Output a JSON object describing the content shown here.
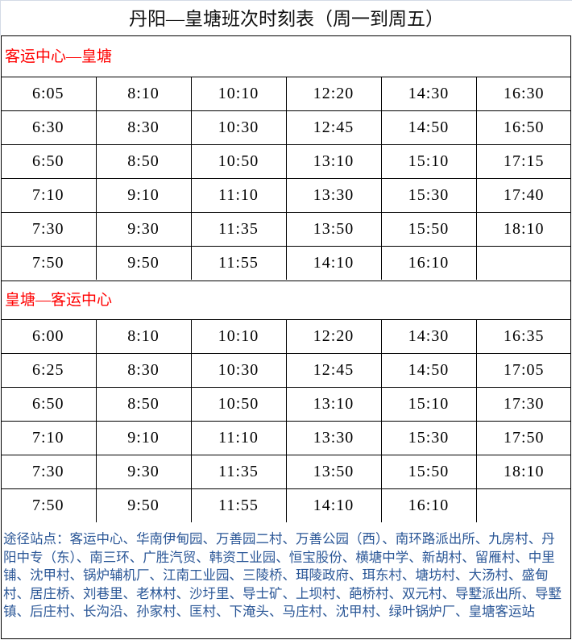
{
  "title": "丹阳—皇塘班次时刻表（周一到周五）",
  "sections": [
    {
      "heading": "客运中心—皇塘",
      "rows": [
        [
          "6:05",
          "8:10",
          "10:10",
          "12:20",
          "14:30",
          "16:30"
        ],
        [
          "6:30",
          "8:30",
          "10:30",
          "12:45",
          "14:50",
          "16:50"
        ],
        [
          "6:50",
          "8:50",
          "10:50",
          "13:10",
          "15:10",
          "17:15"
        ],
        [
          "7:10",
          "9:10",
          "11:10",
          "13:30",
          "15:30",
          "17:40"
        ],
        [
          "7:30",
          "9:30",
          "11:35",
          "13:50",
          "15:50",
          "18:10"
        ],
        [
          "7:50",
          "9:50",
          "11:55",
          "14:10",
          "16:10",
          ""
        ]
      ]
    },
    {
      "heading": "皇塘—客运中心",
      "rows": [
        [
          "6:00",
          "8:10",
          "10:10",
          "12:20",
          "14:30",
          "16:35"
        ],
        [
          "6:25",
          "8:30",
          "10:30",
          "12:45",
          "14:50",
          "17:05"
        ],
        [
          "6:50",
          "8:50",
          "10:50",
          "13:10",
          "15:10",
          "17:30"
        ],
        [
          "7:10",
          "9:10",
          "11:10",
          "13:30",
          "15:30",
          "17:50"
        ],
        [
          "7:30",
          "9:30",
          "11:35",
          "13:50",
          "15:50",
          "18:10"
        ],
        [
          "7:50",
          "9:50",
          "11:55",
          "14:10",
          "16:10",
          ""
        ]
      ]
    }
  ],
  "stops": "途径站点：客运中心、华南伊甸园、万善园二村、万善公园（西）、南环路派出所、九房村、丹阳中专（东）、南三环、广胜汽贸、韩资工业园、恒宝股份、横塘中学、新胡村、留雁村、中里铺、沈甲村、锅炉辅机厂、江南工业园、三陵桥、珥陵政府、珥东村、塘坊村、大汤村、盛甸村、居庄桥、刘巷里、老林村、沙圩里、导士矿、上坝村、葩桥村、双元村、导墅派出所、导墅镇、后庄村、长沟沿、孙家村、匡村、下淹头、马庄村、沈甲村、绿叶锅炉厂、皇塘客运站",
  "colors": {
    "heading": "#ff0000",
    "stops": "#2b5797"
  }
}
